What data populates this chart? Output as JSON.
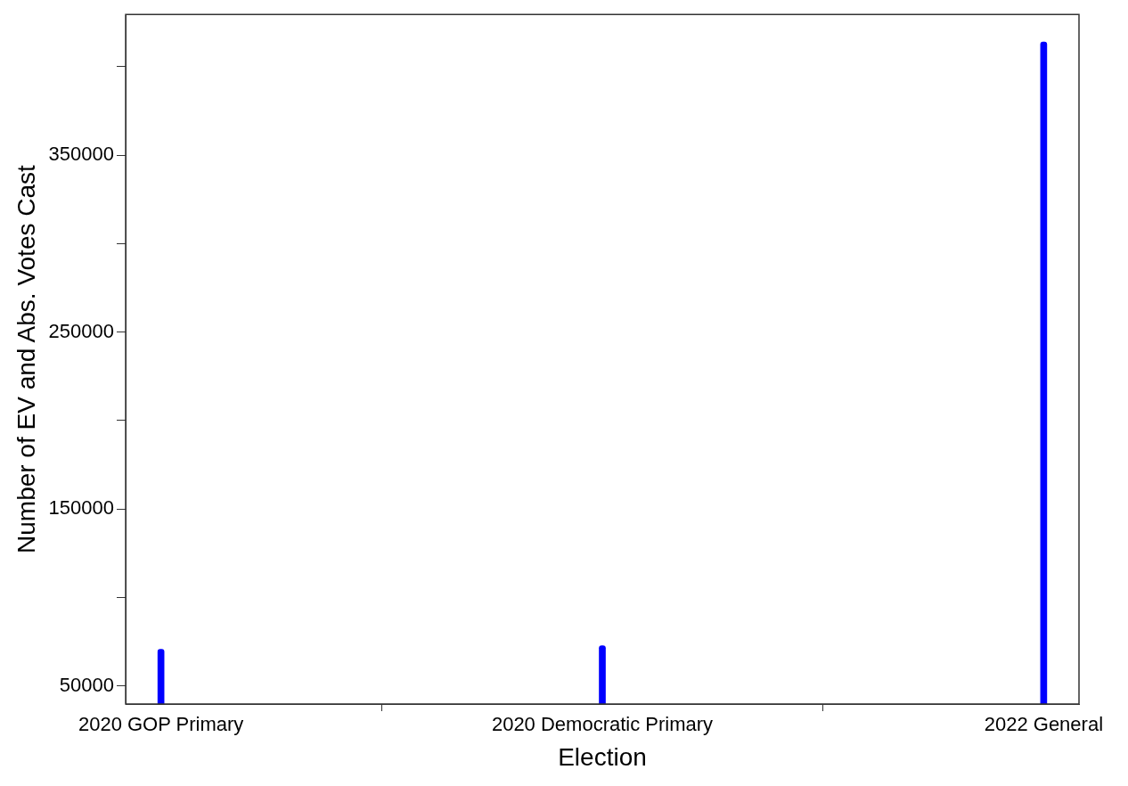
{
  "chart_data": {
    "type": "bar",
    "xlabel": "Election",
    "ylabel": "Number of EV and Abs. Votes Cast",
    "categories": [
      "2020 GOP Primary",
      "2020 Democratic Primary",
      "2022 General"
    ],
    "values": [
      70700,
      72700,
      414000
    ],
    "color": "#0000ff",
    "ylim": [
      39700,
      429500
    ],
    "yticks": [
      50000,
      {
        "value": 100000,
        "label": null
      },
      150000,
      {
        "value": 200000,
        "label": null
      },
      250000,
      {
        "value": 300000,
        "label": null
      },
      350000,
      {
        "value": 400000,
        "label": null
      }
    ],
    "grid": false,
    "legend": false
  }
}
